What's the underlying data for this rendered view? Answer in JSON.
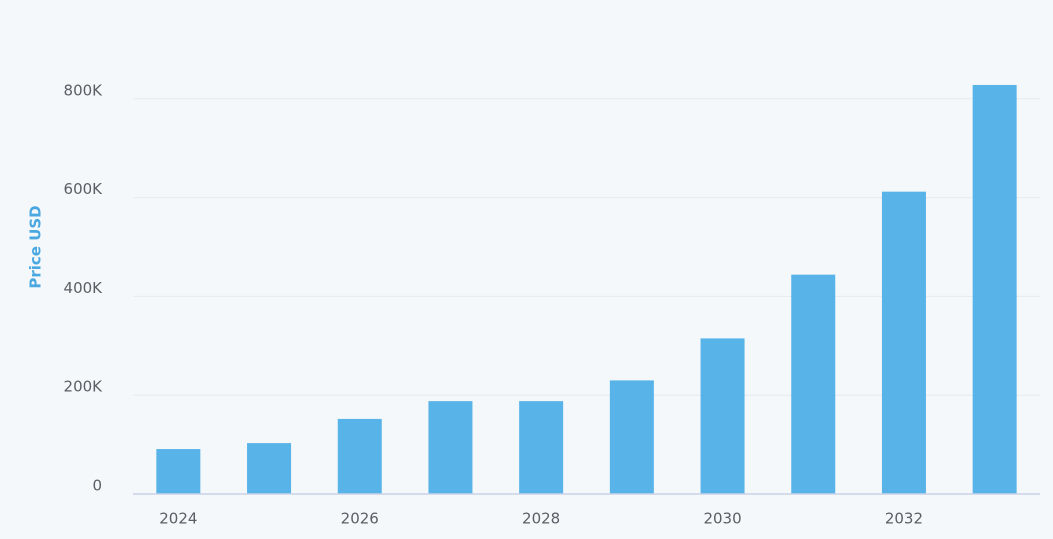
{
  "chart_data": {
    "type": "bar",
    "y_label": "Price USD",
    "categories": [
      "2024",
      null,
      "2026",
      null,
      "2028",
      null,
      "2030",
      null,
      "2032",
      null
    ],
    "values": [
      91000,
      103000,
      152000,
      188000,
      188000,
      230000,
      315000,
      444000,
      612000,
      828000
    ],
    "color": "#58b3e8",
    "ylim": [
      0,
      1000000
    ],
    "yticks": [
      0,
      {
        "value": 200000,
        "label": "200K"
      },
      {
        "value": 400000,
        "label": "400K"
      },
      {
        "value": 600000,
        "label": "600K"
      },
      {
        "value": 800000,
        "label": "800K"
      }
    ],
    "grid": true
  }
}
